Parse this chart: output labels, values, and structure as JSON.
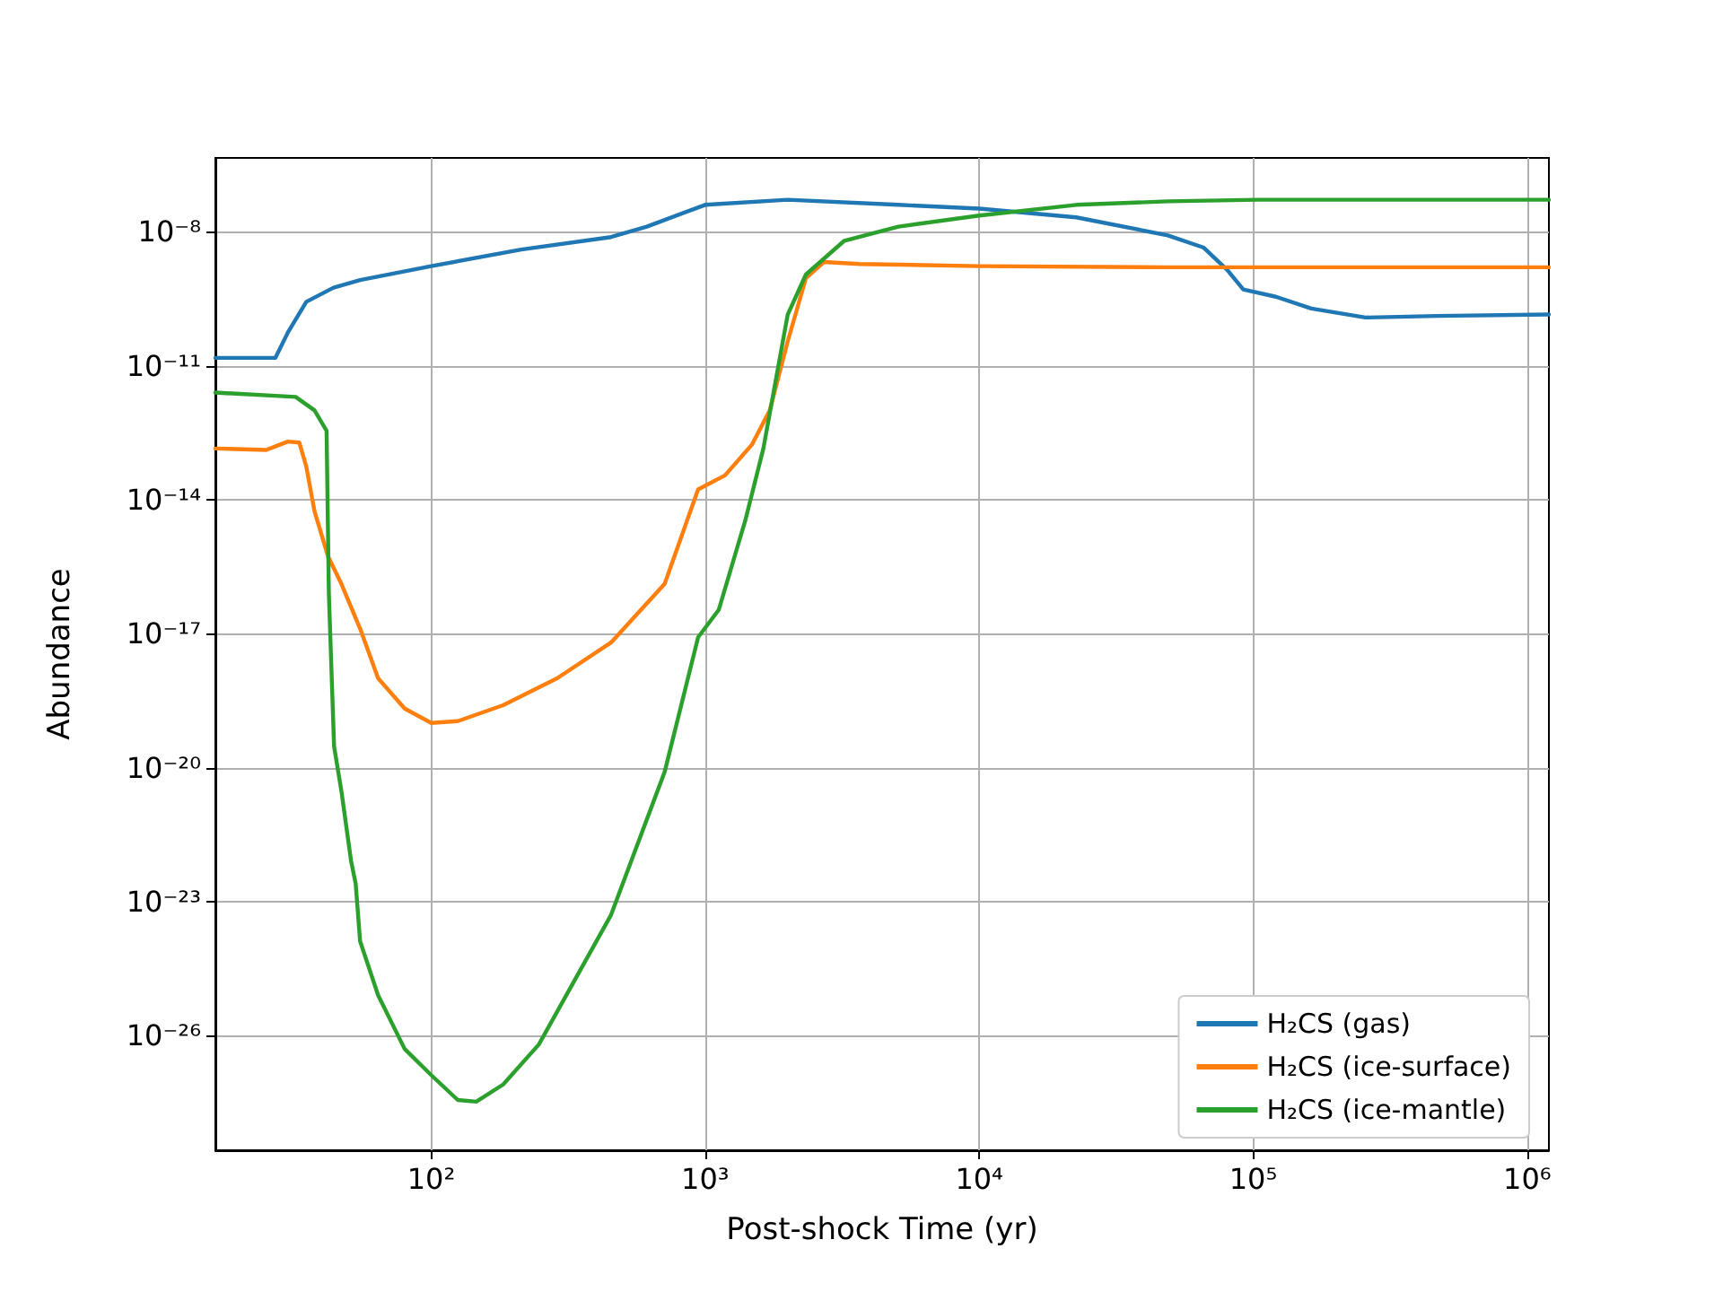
{
  "chart_data": {
    "type": "line",
    "xlabel": "Post-shock Time (yr)",
    "ylabel": "Abundance",
    "log": "xy",
    "grid": true,
    "legend": "bottom right",
    "xlim": [
      16.3,
      1200000
    ],
    "ylim": [
      2.7e-29,
      4.5e-07
    ],
    "xticks": [
      {
        "value": 100,
        "label": "10²"
      },
      {
        "value": 1000,
        "label": "10³"
      },
      {
        "value": 10000,
        "label": "10⁴"
      },
      {
        "value": 100000,
        "label": "10⁵"
      },
      {
        "value": 1000000,
        "label": "10⁶"
      }
    ],
    "yticks": [
      {
        "value": 1e-08,
        "label": "10⁻⁸"
      },
      {
        "value": 1e-11,
        "label": "10⁻¹¹"
      },
      {
        "value": 1e-14,
        "label": "10⁻¹⁴"
      },
      {
        "value": 1e-17,
        "label": "10⁻¹⁷"
      },
      {
        "value": 1e-20,
        "label": "10⁻²⁰"
      },
      {
        "value": 1e-23,
        "label": "10⁻²³"
      },
      {
        "value": 1e-26,
        "label": "10⁻²⁶"
      }
    ],
    "series": [
      {
        "name": "H₂CS (gas)",
        "color": "#1f77b4",
        "x": [
          16.3,
          27,
          30,
          35,
          44,
          55,
          100,
          213,
          453,
          612,
          1000,
          2000,
          5070,
          10000,
          22600,
          48800,
          66000,
          80400,
          92000,
          121000,
          163000,
          257000,
          470000,
          1200000
        ],
        "values": [
          1.5e-11,
          1.5e-11,
          5.6e-11,
          2.7e-10,
          5.6e-10,
          8.3e-10,
          1.7e-09,
          4e-09,
          7.6e-09,
          1.3e-08,
          4e-08,
          5.2e-08,
          4e-08,
          3.3e-08,
          2.1e-08,
          8.3e-09,
          4.4e-09,
          1.4e-09,
          5.1e-10,
          3.5e-10,
          1.9e-10,
          1.2e-10,
          1.3e-10,
          1.4e-10
        ]
      },
      {
        "name": "H₂CS (ice-surface)",
        "color": "#ff7f0e",
        "x": [
          16.3,
          25,
          28,
          30,
          33,
          35,
          37.5,
          42,
          47,
          55,
          64,
          80,
          100,
          125,
          183,
          288,
          453,
          711,
          942,
          1180,
          1480,
          1720,
          2000,
          2330,
          2710,
          3660,
          10000,
          48800,
          1200000
        ],
        "values": [
          1.4e-13,
          1.3e-13,
          1.7e-13,
          2e-13,
          1.9e-13,
          5.5e-14,
          5.5e-15,
          5.4e-16,
          1.3e-16,
          1.3e-17,
          1e-18,
          2.1e-19,
          1e-19,
          1.1e-19,
          2.5e-19,
          1e-18,
          6.3e-18,
          1.3e-16,
          1.7e-14,
          3.5e-14,
          1.7e-13,
          1e-12,
          3.5e-11,
          9.1e-10,
          2.1e-09,
          1.9e-09,
          1.7e-09,
          1.6e-09,
          1.6e-09
        ]
      },
      {
        "name": "H₂CS (ice-mantle)",
        "color": "#2ca02c",
        "x": [
          16.3,
          32,
          37.5,
          41.5,
          42.3,
          44.2,
          47,
          51,
          53,
          55,
          64,
          80,
          100,
          125,
          146,
          183,
          247,
          453,
          711,
          942,
          1120,
          1400,
          1630,
          2000,
          2330,
          3220,
          5070,
          10000,
          22600,
          48800,
          104000,
          1200000
        ],
        "values": [
          2.5e-12,
          2e-12,
          1e-12,
          3.5e-13,
          8e-17,
          3e-20,
          3e-21,
          8e-23,
          2.5e-23,
          1.3e-24,
          8e-26,
          5e-27,
          1.3e-27,
          3.6e-28,
          3.3e-28,
          8e-28,
          6.3e-27,
          5e-24,
          8e-21,
          8.3e-18,
          3.4e-17,
          3.4e-15,
          1.4e-13,
          1.4e-10,
          1.1e-09,
          6.3e-09,
          1.3e-08,
          2.3e-08,
          4e-08,
          4.8e-08,
          5.2e-08,
          5.2e-08
        ]
      }
    ]
  }
}
